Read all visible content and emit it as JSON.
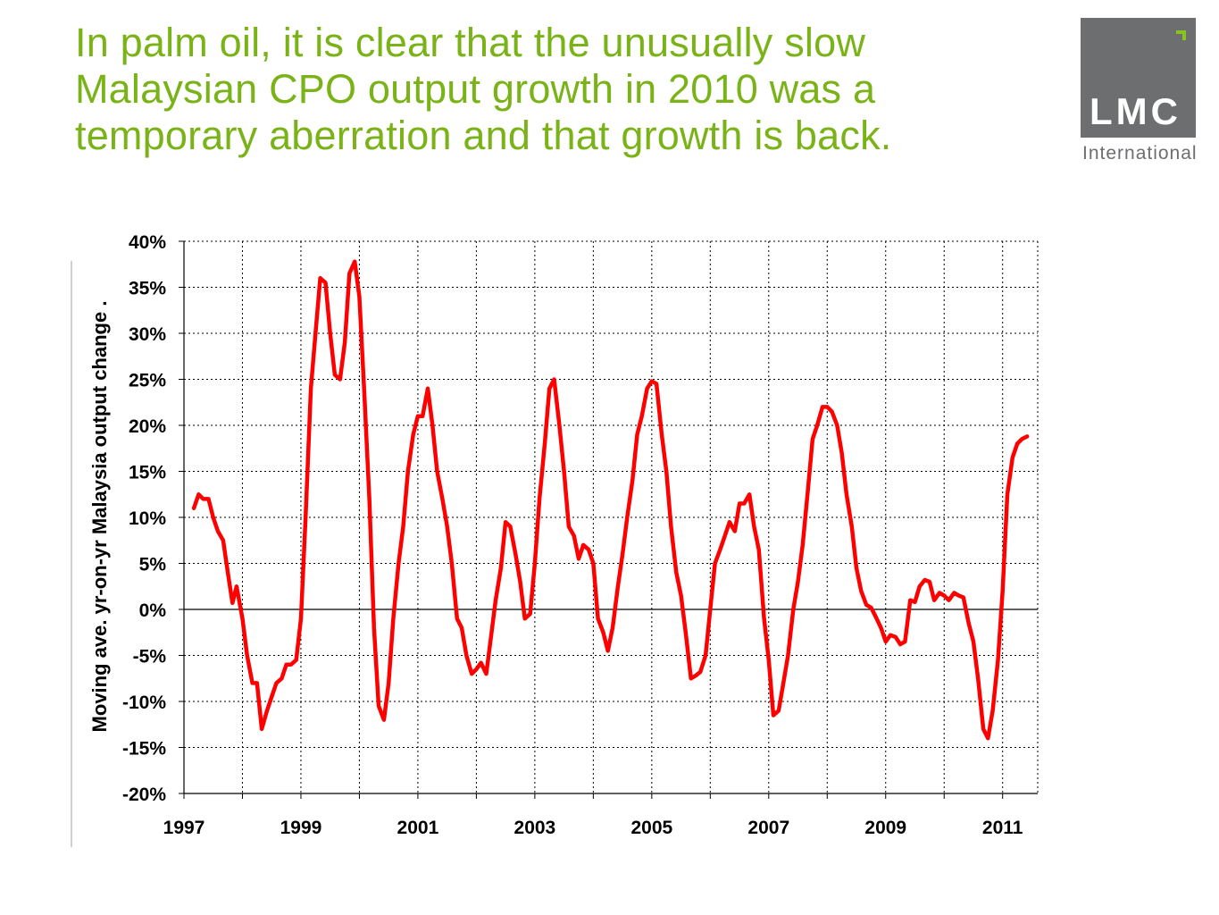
{
  "slide": {
    "title": "In palm oil, it is clear that the unusually slow Malaysian CPO output growth in 2010 was a temporary aberration and that growth is back."
  },
  "logo": {
    "word": "LMC",
    "sub": "International"
  },
  "colors": {
    "title": "#7ab317",
    "series": "#ff0000",
    "logo_bg": "#6d6e70",
    "logo_accent": "#8ac21f"
  },
  "chart_data": {
    "type": "line",
    "title": "",
    "xlabel": "",
    "ylabel": "Moving ave. yr-on-yr Malaysia output change .",
    "xlim": [
      1997,
      2011.6
    ],
    "ylim": [
      -20,
      40
    ],
    "grid": true,
    "x_ticks": [
      "1997",
      "1999",
      "2001",
      "2003",
      "2005",
      "2007",
      "2009",
      "2011"
    ],
    "y_ticks": [
      {
        "v": 40,
        "label": "40%"
      },
      {
        "v": 35,
        "label": "35%"
      },
      {
        "v": 30,
        "label": "30%"
      },
      {
        "v": 25,
        "label": "25%"
      },
      {
        "v": 20,
        "label": "20%"
      },
      {
        "v": 15,
        "label": "15%"
      },
      {
        "v": 10,
        "label": "10%"
      },
      {
        "v": 5,
        "label": "5%"
      },
      {
        "v": 0,
        "label": "0%"
      },
      {
        "v": -5,
        "label": "-5%"
      },
      {
        "v": -10,
        "label": "-10%"
      },
      {
        "v": -15,
        "label": "-15%"
      },
      {
        "v": -20,
        "label": "-20%"
      }
    ],
    "series": [
      {
        "points": [
          [
            1997.17,
            11
          ],
          [
            1997.25,
            12.5
          ],
          [
            1997.33,
            12
          ],
          [
            1997.42,
            12
          ],
          [
            1997.5,
            10
          ],
          [
            1997.58,
            8.5
          ],
          [
            1997.67,
            7.5
          ],
          [
            1997.75,
            4
          ],
          [
            1997.83,
            0.7
          ],
          [
            1997.9,
            2.5
          ],
          [
            1998.0,
            -1
          ],
          [
            1998.08,
            -5
          ],
          [
            1998.17,
            -8
          ],
          [
            1998.25,
            -8
          ],
          [
            1998.33,
            -13
          ],
          [
            1998.42,
            -11
          ],
          [
            1998.5,
            -9.5
          ],
          [
            1998.58,
            -8
          ],
          [
            1998.67,
            -7.5
          ],
          [
            1998.75,
            -6
          ],
          [
            1998.83,
            -6
          ],
          [
            1998.92,
            -5.5
          ],
          [
            1999.0,
            -1
          ],
          [
            1999.08,
            10
          ],
          [
            1999.17,
            24
          ],
          [
            1999.25,
            30
          ],
          [
            1999.33,
            36
          ],
          [
            1999.42,
            35.5
          ],
          [
            1999.5,
            30
          ],
          [
            1999.58,
            25.5
          ],
          [
            1999.67,
            25
          ],
          [
            1999.75,
            29
          ],
          [
            1999.83,
            36.5
          ],
          [
            1999.92,
            37.8
          ],
          [
            2000.0,
            34
          ],
          [
            2000.08,
            24
          ],
          [
            2000.17,
            12
          ],
          [
            2000.25,
            -2
          ],
          [
            2000.33,
            -10.5
          ],
          [
            2000.42,
            -12
          ],
          [
            2000.5,
            -8
          ],
          [
            2000.58,
            -1
          ],
          [
            2000.67,
            5
          ],
          [
            2000.75,
            9
          ],
          [
            2000.83,
            15
          ],
          [
            2000.92,
            19
          ],
          [
            2001.0,
            21
          ],
          [
            2001.08,
            21
          ],
          [
            2001.17,
            24
          ],
          [
            2001.25,
            20
          ],
          [
            2001.33,
            15
          ],
          [
            2001.42,
            12
          ],
          [
            2001.5,
            9
          ],
          [
            2001.58,
            5
          ],
          [
            2001.67,
            -1
          ],
          [
            2001.75,
            -2
          ],
          [
            2001.83,
            -5
          ],
          [
            2001.92,
            -7
          ],
          [
            2002.0,
            -6.5
          ],
          [
            2002.08,
            -5.8
          ],
          [
            2002.17,
            -7
          ],
          [
            2002.25,
            -3
          ],
          [
            2002.33,
            1
          ],
          [
            2002.42,
            4.5
          ],
          [
            2002.5,
            9.5
          ],
          [
            2002.58,
            9
          ],
          [
            2002.67,
            6
          ],
          [
            2002.75,
            3
          ],
          [
            2002.83,
            -1
          ],
          [
            2002.92,
            -0.5
          ],
          [
            2003.0,
            5
          ],
          [
            2003.08,
            12
          ],
          [
            2003.17,
            18
          ],
          [
            2003.25,
            24
          ],
          [
            2003.33,
            25
          ],
          [
            2003.42,
            20
          ],
          [
            2003.5,
            15
          ],
          [
            2003.58,
            9
          ],
          [
            2003.67,
            8
          ],
          [
            2003.75,
            5.5
          ],
          [
            2003.83,
            7
          ],
          [
            2003.92,
            6.5
          ],
          [
            2004.0,
            5
          ],
          [
            2004.08,
            -1
          ],
          [
            2004.17,
            -2.5
          ],
          [
            2004.25,
            -4.5
          ],
          [
            2004.33,
            -2
          ],
          [
            2004.42,
            2.5
          ],
          [
            2004.5,
            6
          ],
          [
            2004.58,
            10
          ],
          [
            2004.67,
            14
          ],
          [
            2004.75,
            19
          ],
          [
            2004.83,
            21
          ],
          [
            2004.92,
            24
          ],
          [
            2005.0,
            24.8
          ],
          [
            2005.08,
            24.5
          ],
          [
            2005.17,
            19
          ],
          [
            2005.25,
            15
          ],
          [
            2005.33,
            9
          ],
          [
            2005.42,
            4
          ],
          [
            2005.5,
            1.5
          ],
          [
            2005.58,
            -2.5
          ],
          [
            2005.67,
            -7.5
          ],
          [
            2005.75,
            -7.2
          ],
          [
            2005.83,
            -6.8
          ],
          [
            2005.92,
            -5
          ],
          [
            2006.0,
            0
          ],
          [
            2006.08,
            5
          ],
          [
            2006.17,
            6.5
          ],
          [
            2006.25,
            8
          ],
          [
            2006.33,
            9.5
          ],
          [
            2006.42,
            8.5
          ],
          [
            2006.5,
            11.5
          ],
          [
            2006.58,
            11.5
          ],
          [
            2006.67,
            12.5
          ],
          [
            2006.75,
            9
          ],
          [
            2006.83,
            6.5
          ],
          [
            2006.92,
            -1
          ],
          [
            2007.0,
            -5.5
          ],
          [
            2007.08,
            -11.5
          ],
          [
            2007.17,
            -11
          ],
          [
            2007.25,
            -8
          ],
          [
            2007.33,
            -5
          ],
          [
            2007.42,
            0
          ],
          [
            2007.5,
            3
          ],
          [
            2007.58,
            7
          ],
          [
            2007.67,
            13
          ],
          [
            2007.75,
            18.5
          ],
          [
            2007.83,
            20
          ],
          [
            2007.92,
            22
          ],
          [
            2008.0,
            22
          ],
          [
            2008.08,
            21.5
          ],
          [
            2008.17,
            20
          ],
          [
            2008.25,
            17
          ],
          [
            2008.33,
            12.5
          ],
          [
            2008.42,
            9
          ],
          [
            2008.5,
            4.5
          ],
          [
            2008.58,
            2
          ],
          [
            2008.67,
            0.5
          ],
          [
            2008.75,
            0.2
          ],
          [
            2008.83,
            -0.8
          ],
          [
            2008.92,
            -2
          ],
          [
            2009.0,
            -3.5
          ],
          [
            2009.08,
            -2.8
          ],
          [
            2009.17,
            -3
          ],
          [
            2009.25,
            -3.8
          ],
          [
            2009.33,
            -3.5
          ],
          [
            2009.42,
            1
          ],
          [
            2009.5,
            0.8
          ],
          [
            2009.58,
            2.5
          ],
          [
            2009.67,
            3.2
          ],
          [
            2009.75,
            3
          ],
          [
            2009.83,
            1
          ],
          [
            2009.92,
            1.8
          ],
          [
            2010.0,
            1.5
          ],
          [
            2010.08,
            1
          ],
          [
            2010.17,
            1.8
          ],
          [
            2010.25,
            1.5
          ],
          [
            2010.33,
            1.3
          ],
          [
            2010.42,
            -1.5
          ],
          [
            2010.5,
            -3.5
          ],
          [
            2010.58,
            -7.5
          ],
          [
            2010.67,
            -13
          ],
          [
            2010.75,
            -14
          ],
          [
            2010.83,
            -11
          ],
          [
            2010.92,
            -5.5
          ],
          [
            2011.0,
            2
          ],
          [
            2011.08,
            12.5
          ],
          [
            2011.17,
            16.5
          ],
          [
            2011.25,
            18
          ],
          [
            2011.33,
            18.5
          ],
          [
            2011.42,
            18.8
          ]
        ]
      }
    ]
  }
}
